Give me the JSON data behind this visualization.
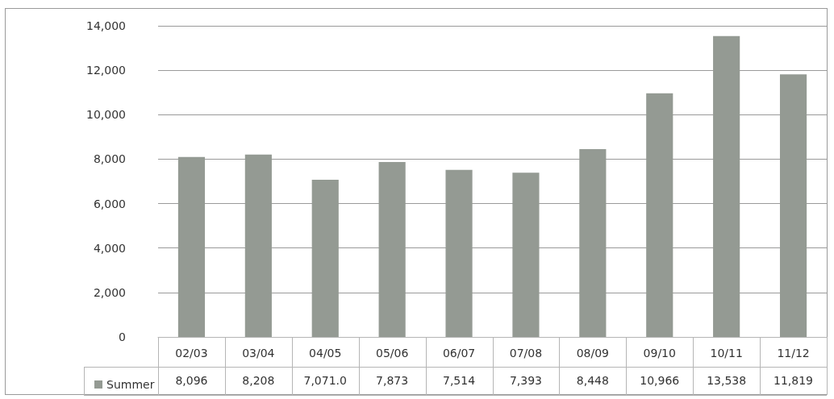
{
  "chart_data": {
    "type": "bar",
    "categories": [
      "02/03",
      "03/04",
      "04/05",
      "05/06",
      "06/07",
      "07/08",
      "08/09",
      "09/10",
      "10/11",
      "11/12"
    ],
    "series": [
      {
        "name": "Summer",
        "color": "#949a93",
        "values": [
          8096,
          8208,
          7071.0,
          7873,
          7514,
          7393,
          8448,
          10966,
          13538,
          11819
        ],
        "value_labels": [
          "8,096",
          "8,208",
          "7,071.0",
          "7,873",
          "7,514",
          "7,393",
          "8,448",
          "10,966",
          "13,538",
          "11,819"
        ]
      }
    ],
    "ylim": [
      0,
      14000
    ],
    "yticks": [
      0,
      {
        "value": 2000,
        "label": "2,000"
      },
      {
        "value": 4000,
        "label": "4,000"
      },
      {
        "value": 6000,
        "label": "6,000"
      },
      {
        "value": 8000,
        "label": "8,000"
      },
      {
        "value": 10000,
        "label": "10,000"
      },
      {
        "value": 12000,
        "label": "12,000"
      },
      {
        "value": 14000,
        "label": "14,000"
      }
    ],
    "grid": "y",
    "legend": "bottom left"
  }
}
